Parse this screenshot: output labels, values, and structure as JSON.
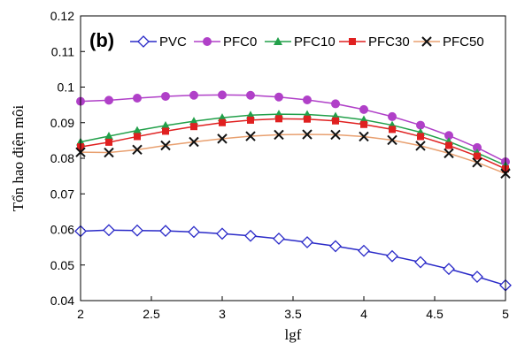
{
  "chart_data": {
    "type": "line",
    "panel_label": "(b)",
    "xlabel": "lgf",
    "ylabel": "Tổn hao điện môi",
    "xlim": [
      2,
      5
    ],
    "ylim": [
      0.04,
      0.12
    ],
    "x_ticks": [
      "2",
      "2.5",
      "3",
      "3.5",
      "4",
      "4.5",
      "5"
    ],
    "y_ticks": [
      "0.04",
      "0.05",
      "0.06",
      "0.07",
      "0.08",
      "0.09",
      "0.1",
      "0.11",
      "0.12"
    ],
    "grid": false,
    "legend_position": "top",
    "x": [
      2.0,
      2.2,
      2.4,
      2.6,
      2.8,
      3.0,
      3.2,
      3.4,
      3.6,
      3.8,
      4.0,
      4.2,
      4.4,
      4.6,
      4.8,
      5.0
    ],
    "series": [
      {
        "name": "PVC",
        "color": "#2a2ac8",
        "marker": "diamond-open",
        "values": [
          0.0595,
          0.0598,
          0.0597,
          0.0596,
          0.0593,
          0.0588,
          0.0582,
          0.0574,
          0.0564,
          0.0553,
          0.054,
          0.0525,
          0.0508,
          0.0489,
          0.0467,
          0.0443
        ]
      },
      {
        "name": "PFC0",
        "color": "#b040c8",
        "marker": "circle",
        "values": [
          0.096,
          0.0963,
          0.0969,
          0.0974,
          0.0977,
          0.0978,
          0.0977,
          0.0972,
          0.0964,
          0.0953,
          0.0937,
          0.0917,
          0.0893,
          0.0864,
          0.083,
          0.079
        ]
      },
      {
        "name": "PFC10",
        "color": "#22a04a",
        "marker": "triangle",
        "values": [
          0.0846,
          0.0862,
          0.0878,
          0.0892,
          0.0904,
          0.0914,
          0.0921,
          0.0924,
          0.0923,
          0.0918,
          0.0908,
          0.0893,
          0.0873,
          0.0847,
          0.0815,
          0.078
        ]
      },
      {
        "name": "PFC30",
        "color": "#e02020",
        "marker": "square",
        "values": [
          0.0832,
          0.0845,
          0.0861,
          0.0876,
          0.0889,
          0.09,
          0.0907,
          0.0911,
          0.091,
          0.0905,
          0.0895,
          0.0881,
          0.0861,
          0.0836,
          0.0806,
          0.077
        ]
      },
      {
        "name": "PFC50",
        "color": "#e8a070",
        "marker": "x",
        "marker_color": "#111111",
        "values": [
          0.0817,
          0.0816,
          0.0824,
          0.0836,
          0.0846,
          0.0855,
          0.0862,
          0.0866,
          0.0867,
          0.0866,
          0.0861,
          0.0851,
          0.0835,
          0.0814,
          0.0788,
          0.0757
        ]
      }
    ]
  }
}
